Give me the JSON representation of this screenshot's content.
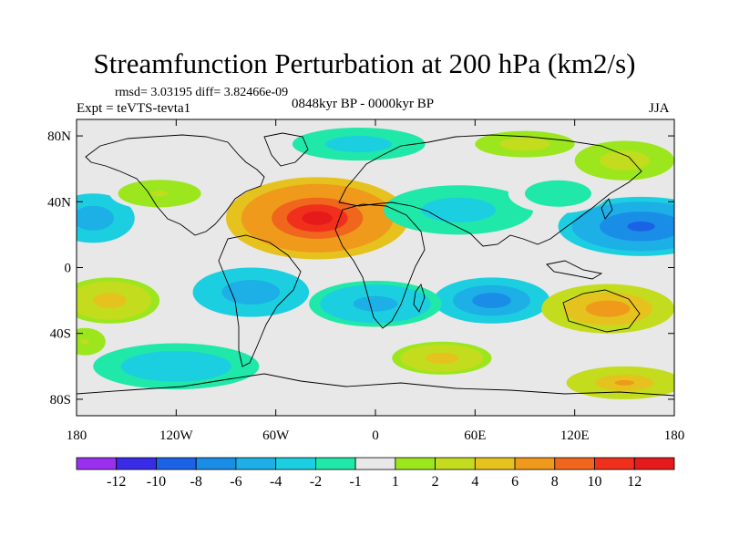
{
  "chart_data": {
    "type": "heatmap",
    "title": "Streamfunction Perturbation at 200 hPa (km2/s)",
    "stats_line": "rmsd= 3.03195 diff= 3.82466e-09",
    "experiment": "Expt = teVTS-tevta1",
    "period": "0848kyr BP - 0000kyr BP",
    "season": "JJA",
    "projection": "cylindrical-equidistant",
    "xlim": [
      -180,
      180
    ],
    "ylim": [
      -90,
      90
    ],
    "x_ticks": [
      {
        "value": -180,
        "label": "180"
      },
      {
        "value": -120,
        "label": "120W"
      },
      {
        "value": -60,
        "label": "60W"
      },
      {
        "value": 0,
        "label": "0"
      },
      {
        "value": 60,
        "label": "60E"
      },
      {
        "value": 120,
        "label": "120E"
      },
      {
        "value": 180,
        "label": "180"
      }
    ],
    "y_ticks": [
      {
        "value": 80,
        "label": "80N"
      },
      {
        "value": 40,
        "label": "40N"
      },
      {
        "value": 0,
        "label": "0"
      },
      {
        "value": -40,
        "label": "40S"
      },
      {
        "value": -80,
        "label": "80S"
      }
    ],
    "colorbar": {
      "labels": [
        "-12",
        "-10",
        "-8",
        "-6",
        "-4",
        "-2",
        "-1",
        "1",
        "2",
        "4",
        "6",
        "8",
        "10",
        "12"
      ],
      "colors": [
        "#9b2ff0",
        "#3a2ce6",
        "#1a62e6",
        "#1a8ee6",
        "#1cb0e6",
        "#1ccfe0",
        "#20e8a8",
        "#e8e8e8",
        "#9ce61e",
        "#c4dc1e",
        "#e6c21e",
        "#f09a1c",
        "#f0661c",
        "#f0301c",
        "#e61a1a"
      ]
    },
    "field_regions": [
      {
        "lon": -35,
        "lat": 30,
        "r_lon": 55,
        "r_lat": 25,
        "value": 12,
        "note": "North Atlantic / N Africa maximum"
      },
      {
        "lon": 160,
        "lat": 25,
        "r_lon": 50,
        "r_lat": 18,
        "value": -9,
        "note": "North Pacific minimum"
      },
      {
        "lon": -170,
        "lat": 30,
        "r_lon": 25,
        "r_lat": 15,
        "value": -6
      },
      {
        "lon": 50,
        "lat": 35,
        "r_lon": 45,
        "r_lat": 15,
        "value": -3
      },
      {
        "lon": 70,
        "lat": -20,
        "r_lon": 35,
        "r_lat": 14,
        "value": -8,
        "note": "S Indian Ocean minimum"
      },
      {
        "lon": 0,
        "lat": -22,
        "r_lon": 40,
        "r_lat": 14,
        "value": -5
      },
      {
        "lon": -75,
        "lat": -15,
        "r_lon": 35,
        "r_lat": 15,
        "value": -6
      },
      {
        "lon": 140,
        "lat": -25,
        "r_lon": 40,
        "r_lat": 15,
        "value": 7,
        "note": "Australia maximum"
      },
      {
        "lon": -160,
        "lat": -20,
        "r_lon": 30,
        "r_lat": 14,
        "value": 5
      },
      {
        "lon": 40,
        "lat": -55,
        "r_lon": 30,
        "r_lat": 10,
        "value": 5
      },
      {
        "lon": 150,
        "lat": -70,
        "r_lon": 35,
        "r_lat": 10,
        "value": 6
      },
      {
        "lon": -120,
        "lat": -60,
        "r_lon": 50,
        "r_lat": 14,
        "value": -4
      },
      {
        "lon": -10,
        "lat": 75,
        "r_lon": 40,
        "r_lat": 10,
        "value": -3
      },
      {
        "lon": 90,
        "lat": 75,
        "r_lon": 30,
        "r_lat": 8,
        "value": 3
      },
      {
        "lon": 150,
        "lat": 65,
        "r_lon": 30,
        "r_lat": 12,
        "value": 3
      },
      {
        "lon": -130,
        "lat": 45,
        "r_lon": 30,
        "r_lat": 10,
        "value": 2
      },
      {
        "lon": 110,
        "lat": 45,
        "r_lon": 30,
        "r_lat": 12,
        "value": -2
      },
      {
        "lon": -175,
        "lat": -45,
        "r_lon": 15,
        "r_lat": 10,
        "value": 2
      }
    ]
  }
}
